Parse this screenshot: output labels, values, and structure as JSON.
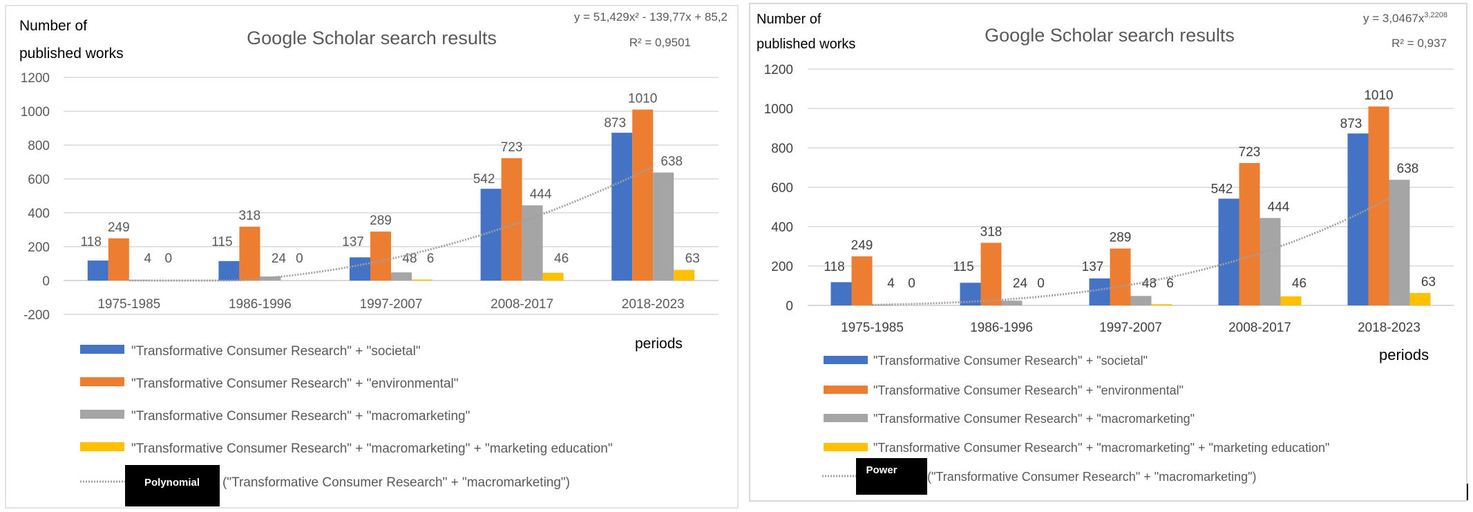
{
  "chart_data": [
    {
      "type": "bar",
      "title": "Google Scholar search results",
      "ylabel": [
        "Number of",
        "published works"
      ],
      "xlabel": "periods",
      "ylim": [
        -200,
        1200
      ],
      "yticks": [
        -200,
        0,
        200,
        400,
        600,
        800,
        1000,
        1200
      ],
      "grid": true,
      "legend_position": "bottom",
      "categories": [
        "1975-1985",
        "1986-1996",
        "1997-2007",
        "2008-2017",
        "2018-2023"
      ],
      "series": [
        {
          "name": "\"Transformative Consumer Research\" + \"societal\"",
          "color": "#4472C4",
          "values": [
            118,
            115,
            137,
            542,
            873
          ]
        },
        {
          "name": "\"Transformative Consumer Research\" + \"environmental\"",
          "color": "#ED7D31",
          "values": [
            249,
            318,
            289,
            723,
            1010
          ]
        },
        {
          "name": "\"Transformative Consumer Research\" + \"macromarketing\"",
          "color": "#A5A5A5",
          "values": [
            4,
            24,
            48,
            444,
            638
          ]
        },
        {
          "name": "\"Transformative Consumer Research\" + \"macromarketing\" + \"marketing education\"",
          "color": "#FFC000",
          "values": [
            0,
            0,
            6,
            46,
            63
          ]
        }
      ],
      "trendline": {
        "type": "polynomial",
        "badge": "Polynomial",
        "label": "(\"Transformative Consumer Research\" + \"macromarketing\")",
        "equation": "y = 51,429x² - 139,77x + 85,2",
        "r2": "R² = 0,9501",
        "coefficients": [
          51.429,
          -139.77,
          85.2
        ]
      }
    },
    {
      "type": "bar",
      "title": "Google Scholar search results",
      "ylabel": [
        "Number of",
        "published works"
      ],
      "xlabel": "periods",
      "ylim": [
        0,
        1200
      ],
      "yticks": [
        0,
        200,
        400,
        600,
        800,
        1000,
        1200
      ],
      "grid": true,
      "legend_position": "bottom",
      "categories": [
        "1975-1985",
        "1986-1996",
        "1997-2007",
        "2008-2017",
        "2018-2023"
      ],
      "series": [
        {
          "name": "\"Transformative Consumer Research'' + \"societal\"",
          "color": "#4472C4",
          "values": [
            118,
            115,
            137,
            542,
            873
          ]
        },
        {
          "name": "\"Transformative Consumer Research'' + \"environmental\"",
          "color": "#ED7D31",
          "values": [
            249,
            318,
            289,
            723,
            1010
          ]
        },
        {
          "name": "\"Transformative Consumer Research'' + \"macromarketing\"",
          "color": "#A5A5A5",
          "values": [
            4,
            24,
            48,
            444,
            638
          ]
        },
        {
          "name": "\"Transformative Consumer Research'' + \"macromarketing\" + \"marketing education\"",
          "color": "#FFC000",
          "values": [
            0,
            0,
            6,
            46,
            63
          ]
        }
      ],
      "trendline": {
        "type": "power",
        "badge": "Power",
        "label": "(\"Transformative Consumer Research\" + \"macromarketing\")",
        "equation_base": "y = 3,0467x",
        "equation_exp": "3,2208",
        "r2": "R² = 0,937",
        "coefficients": [
          3.0467,
          3.2208
        ]
      }
    }
  ]
}
